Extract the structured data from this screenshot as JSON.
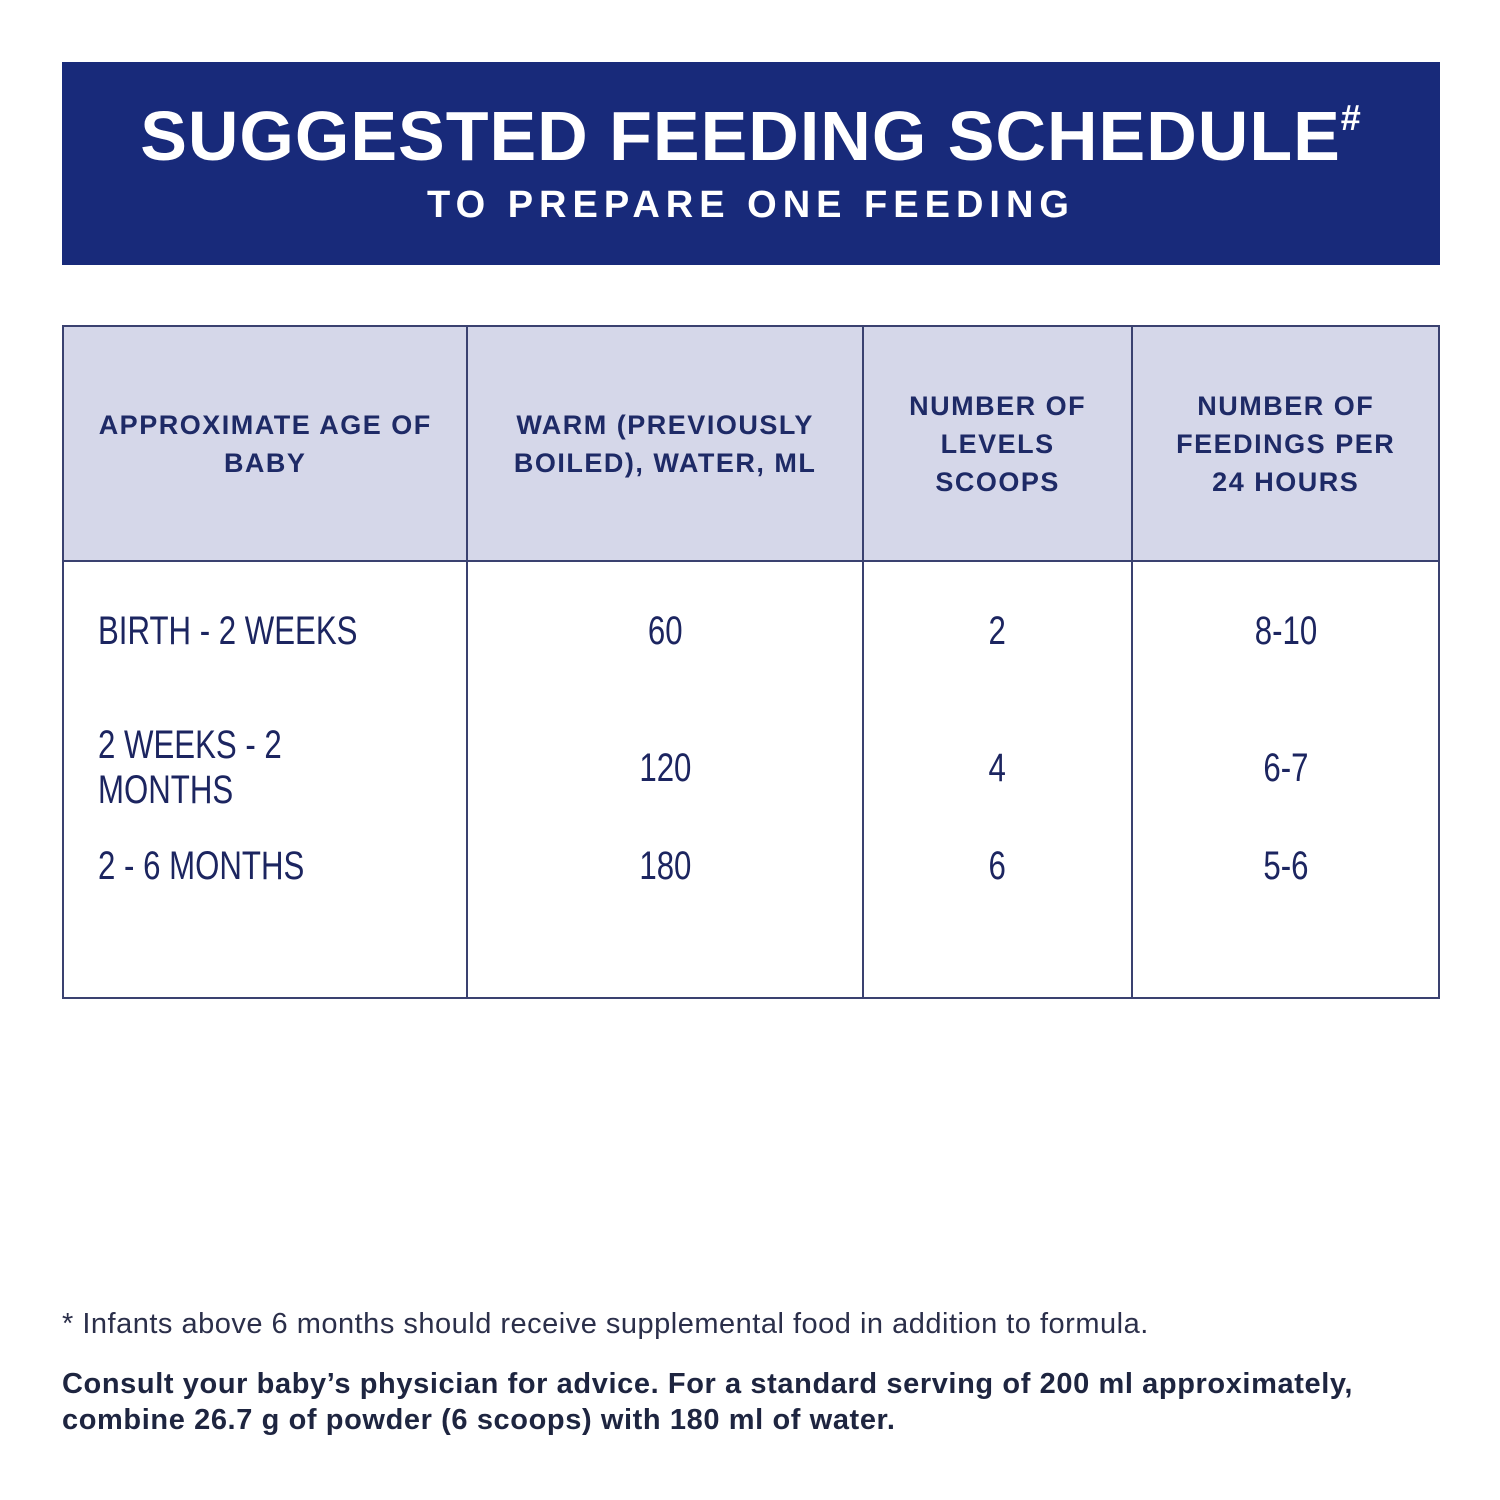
{
  "header": {
    "title": "SUGGESTED FEEDING SCHEDULE",
    "title_mark": "#",
    "subtitle": "TO PREPARE ONE FEEDING"
  },
  "table": {
    "columns": [
      "APPROXIMATE AGE OF BABY",
      "WARM (PREVIOUSLY BOILED), WATER, ML",
      "NUMBER OF LEVELS SCOOPS",
      "NUMBER OF FEEDINGS PER 24 HOURS"
    ],
    "rows": [
      [
        "BIRTH - 2 WEEKS",
        "60",
        "2",
        "8-10"
      ],
      [
        "2 WEEKS - 2 MONTHS",
        "120",
        "4",
        "6-7"
      ],
      [
        "2 - 6 MONTHS",
        "180",
        "6",
        "5-6"
      ]
    ]
  },
  "footnotes": {
    "note": "* Infants above 6 months should receive supplemental food in addition to formula.",
    "advice": "Consult your baby’s physician for advice. For a standard serving of 200 ml approximately, combine 26.7 g of powder (6 scoops) with 180 ml of water."
  }
}
